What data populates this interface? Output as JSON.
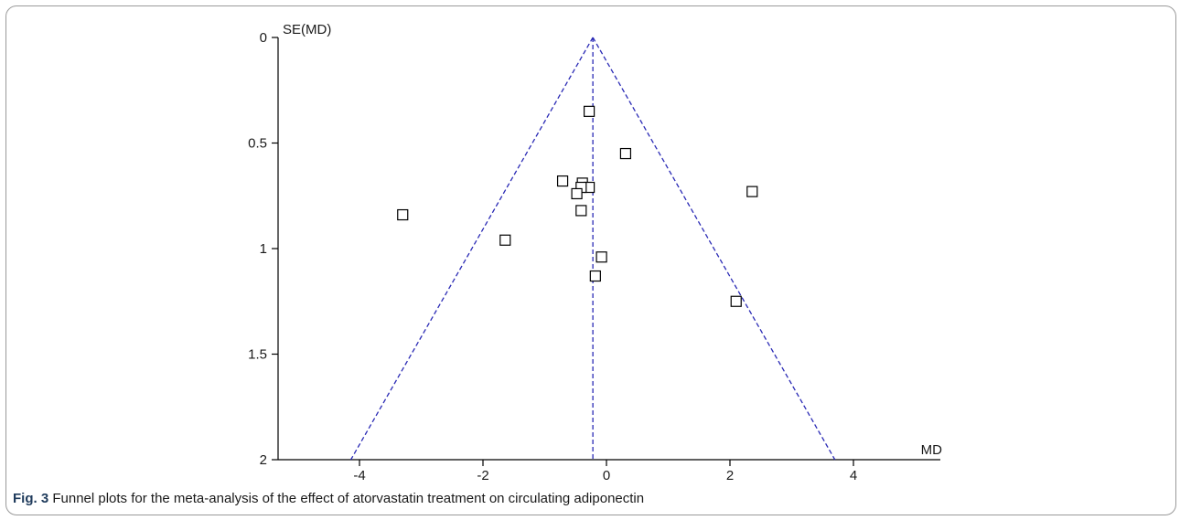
{
  "figure": {
    "label": "Fig. 3",
    "caption": "Funnel plots for the meta-analysis of the effect of atorvastatin treatment on circulating adiponectin"
  },
  "colors": {
    "funnel": "#2a2ab5",
    "axis": "#000000",
    "marker": "#000000"
  },
  "chart_data": {
    "type": "scatter",
    "xlabel": "MD",
    "ylabel": "SE(MD)",
    "xlim": [
      -5.4,
      5.4
    ],
    "ylim": [
      2,
      0
    ],
    "y_reversed": true,
    "x_ticks": [
      -4,
      -2,
      0,
      2,
      4
    ],
    "x_tick_labels": [
      "-4",
      "-2",
      "0",
      "2",
      "4"
    ],
    "y_ticks": [
      0,
      0.5,
      1,
      1.5,
      2
    ],
    "y_tick_labels": [
      "0",
      "0.5",
      "1",
      "1.5",
      "2"
    ],
    "pooled_md": -0.22,
    "funnel_half_width_per_se": 1.96,
    "grid": false,
    "points": [
      {
        "x": -0.28,
        "y": 0.35
      },
      {
        "x": 0.31,
        "y": 0.55
      },
      {
        "x": -0.71,
        "y": 0.68
      },
      {
        "x": -0.39,
        "y": 0.69
      },
      {
        "x": -0.28,
        "y": 0.71
      },
      {
        "x": -0.41,
        "y": 0.71
      },
      {
        "x": -0.48,
        "y": 0.74
      },
      {
        "x": 2.36,
        "y": 0.73
      },
      {
        "x": -0.41,
        "y": 0.82
      },
      {
        "x": -3.3,
        "y": 0.84
      },
      {
        "x": -1.64,
        "y": 0.96
      },
      {
        "x": -0.08,
        "y": 1.04
      },
      {
        "x": -0.18,
        "y": 1.13
      },
      {
        "x": 2.1,
        "y": 1.25
      }
    ]
  }
}
